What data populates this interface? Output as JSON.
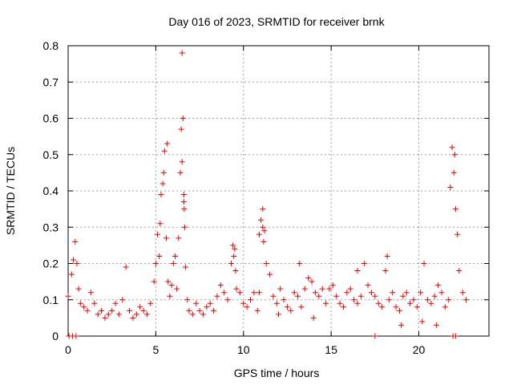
{
  "chart_data": {
    "type": "scatter",
    "title": "Day 016 of 2023, SRMTID for receiver brnk",
    "xlabel": "GPS time / hours",
    "ylabel": "SRMTID / TECUs",
    "xlim": [
      0,
      24
    ],
    "ylim": [
      0,
      0.8
    ],
    "xticks": [
      0,
      5,
      10,
      15,
      20
    ],
    "yticks": [
      0,
      0.1,
      0.2,
      0.3,
      0.4,
      0.5,
      0.6,
      0.7,
      0.8
    ],
    "grid": true,
    "marker": "+",
    "series_color": "#ee0000",
    "series": [
      {
        "name": "SRMTID",
        "x": [
          0.0,
          0.2,
          0.3,
          0.4,
          0.5,
          0.6,
          0.7,
          0.9,
          1.1,
          1.3,
          1.5,
          1.7,
          1.9,
          2.1,
          2.3,
          2.5,
          2.7,
          2.9,
          3.1,
          3.3,
          3.5,
          3.7,
          3.9,
          4.1,
          4.3,
          4.5,
          4.7,
          4.9,
          5.0,
          5.1,
          5.2,
          5.3,
          5.4,
          5.5,
          5.6,
          5.7,
          5.8,
          5.9,
          6.0,
          6.1,
          6.2,
          6.3,
          6.4,
          6.5,
          6.55,
          6.6,
          6.65,
          6.7,
          6.8,
          6.9,
          7.1,
          7.3,
          7.5,
          7.7,
          7.9,
          8.1,
          8.3,
          8.5,
          8.7,
          8.9,
          9.1,
          9.3,
          9.4,
          9.5,
          9.6,
          9.8,
          10.0,
          10.2,
          10.4,
          10.6,
          10.8,
          10.9,
          11.0,
          11.1,
          11.2,
          11.3,
          11.5,
          11.7,
          11.9,
          12.1,
          12.3,
          12.5,
          12.7,
          12.9,
          13.1,
          13.3,
          13.5,
          13.7,
          13.9,
          14.1,
          14.3,
          14.5,
          14.7,
          14.9,
          15.1,
          15.3,
          15.5,
          15.7,
          15.9,
          16.1,
          16.3,
          16.5,
          16.7,
          16.9,
          17.1,
          17.3,
          17.5,
          17.7,
          17.9,
          18.1,
          18.3,
          18.5,
          18.7,
          18.9,
          19.1,
          19.3,
          19.5,
          19.7,
          19.9,
          20.1,
          20.3,
          20.5,
          20.7,
          20.9,
          21.1,
          21.3,
          21.5,
          21.7,
          21.8,
          21.9,
          22.0,
          22.1,
          22.2,
          22.3,
          22.5,
          22.7,
          0.05,
          0.25,
          0.45,
          5.25,
          5.45,
          5.65,
          6.45,
          6.5,
          6.6,
          6.62,
          9.45,
          9.55,
          10.9,
          11.1,
          11.15,
          12.0,
          13.2,
          14.0,
          16.5,
          17.5,
          18.2,
          19.0,
          20.2,
          21.0,
          21.95,
          22.05,
          22.1
        ],
        "y": [
          0.11,
          0.17,
          0.21,
          0.26,
          0.2,
          0.13,
          0.09,
          0.08,
          0.07,
          0.12,
          0.09,
          0.06,
          0.07,
          0.05,
          0.06,
          0.07,
          0.09,
          0.06,
          0.1,
          0.19,
          0.07,
          0.05,
          0.06,
          0.08,
          0.07,
          0.06,
          0.09,
          0.15,
          0.2,
          0.28,
          0.22,
          0.39,
          0.42,
          0.51,
          0.27,
          0.15,
          0.11,
          0.14,
          0.2,
          0.22,
          0.13,
          0.27,
          0.45,
          0.78,
          0.6,
          0.37,
          0.3,
          0.19,
          0.1,
          0.07,
          0.06,
          0.09,
          0.07,
          0.06,
          0.08,
          0.09,
          0.07,
          0.11,
          0.14,
          0.12,
          0.1,
          0.2,
          0.25,
          0.24,
          0.13,
          0.12,
          0.09,
          0.08,
          0.1,
          0.12,
          0.07,
          0.12,
          0.32,
          0.35,
          0.29,
          0.2,
          0.17,
          0.11,
          0.09,
          0.13,
          0.1,
          0.08,
          0.07,
          0.12,
          0.11,
          0.08,
          0.13,
          0.16,
          0.15,
          0.12,
          0.11,
          0.13,
          0.09,
          0.13,
          0.14,
          0.11,
          0.09,
          0.08,
          0.12,
          0.13,
          0.1,
          0.09,
          0.11,
          0.2,
          0.14,
          0.12,
          0.11,
          0.09,
          0.08,
          0.18,
          0.1,
          0.12,
          0.08,
          0.07,
          0.11,
          0.12,
          0.09,
          0.1,
          0.08,
          0.12,
          0.2,
          0.1,
          0.09,
          0.11,
          0.14,
          0.12,
          0.08,
          0.1,
          0.41,
          0.52,
          0.45,
          0.35,
          0.28,
          0.18,
          0.12,
          0.1,
          0.0,
          0.0,
          0.0,
          0.31,
          0.45,
          0.53,
          0.57,
          0.48,
          0.39,
          0.35,
          0.22,
          0.18,
          0.28,
          0.3,
          0.26,
          0.06,
          0.2,
          0.05,
          0.18,
          0.0,
          0.22,
          0.03,
          0.04,
          0.03,
          0.0,
          0.5,
          0.0
        ]
      }
    ]
  }
}
